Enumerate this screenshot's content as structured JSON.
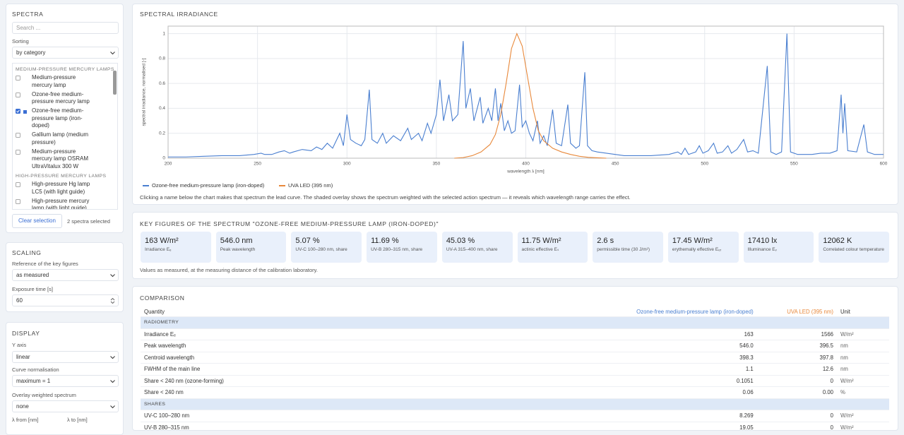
{
  "sidebar": {
    "spectra": {
      "title": "SPECTRA",
      "search_placeholder": "Search ...",
      "sorting_label": "Sorting",
      "sorting_value": "by category",
      "groups": [
        {
          "name": "MEDIUM-PRESSURE MERCURY LAMPS",
          "items": [
            {
              "label": "Medium-pressure mercury lamp",
              "checked": false
            },
            {
              "label": "Ozone-free medium-pressure mercury lamp",
              "checked": false
            },
            {
              "label": "Ozone-free medium-pressure lamp (iron-doped)",
              "checked": true,
              "color": "#3b6fd4"
            },
            {
              "label": "Gallium lamp (medium pressure)",
              "checked": false
            },
            {
              "label": "Medium-pressure mercury lamp OSRAM UltraVitalux 300 W",
              "checked": false
            }
          ]
        },
        {
          "name": "HIGH-PRESSURE MERCURY LAMPS",
          "items": [
            {
              "label": "High-pressure Hg lamp LC5 (with light guide)",
              "checked": false
            },
            {
              "label": "High-pressure mercury lamp (with light guide)",
              "checked": false
            }
          ]
        }
      ],
      "clear_button": "Clear selection",
      "selected_count": "2 spectra selected"
    },
    "scaling": {
      "title": "SCALING",
      "reference_label": "Reference of the key figures",
      "reference_value": "as measured",
      "exposure_label": "Exposure time [s]",
      "exposure_value": "60"
    },
    "display": {
      "title": "DISPLAY",
      "y_axis_label": "Y axis",
      "y_axis_value": "linear",
      "normalisation_label": "Curve normalisation",
      "normalisation_value": "maximum = 1",
      "overlay_label": "Overlay weighted spectrum",
      "overlay_value": "none",
      "from_label": "λ from [nm]",
      "to_label": "λ to [nm]"
    }
  },
  "chart_data": {
    "type": "line",
    "title": "SPECTRAL IRRADIANCE",
    "x_label": "wavelength λ [nm]",
    "y_label": "spectral irradiance, normalised [-]",
    "xlim": [
      200,
      600
    ],
    "xticks": [
      200,
      250,
      300,
      350,
      400,
      450,
      500,
      550,
      600
    ],
    "ylim": [
      0,
      1.06
    ],
    "yticks": [
      0,
      0.2,
      0.4,
      0.6,
      0.8,
      1
    ],
    "grid": true,
    "series": [
      {
        "name": "Ozone-free medium-pressure lamp (iron-doped)",
        "color": "#4a7fd0",
        "x": [
          200,
          210,
          220,
          230,
          240,
          248,
          252,
          254,
          258,
          262,
          265,
          268,
          270,
          275,
          280,
          283,
          286,
          289,
          292,
          296,
          298,
          300,
          302,
          305,
          308,
          310,
          312.5,
          314,
          317,
          320,
          322,
          326,
          330,
          334,
          336,
          340,
          342,
          345,
          347,
          350,
          352,
          354,
          357,
          359,
          362,
          365,
          366.5,
          369,
          371,
          374.5,
          376,
          379,
          381,
          383,
          384.5,
          386,
          388,
          390,
          392,
          394,
          396.5,
          398,
          400,
          402,
          404,
          406.5,
          408,
          410,
          412,
          415,
          417,
          420,
          423.5,
          425,
          428,
          430,
          433,
          434.5,
          437,
          440,
          445,
          450,
          455,
          460,
          470,
          480,
          485,
          487,
          489,
          491,
          495,
          497,
          499,
          502,
          505,
          507,
          510,
          513,
          515,
          518,
          521.8,
          524,
          527,
          530,
          535,
          537,
          540,
          543,
          546,
          548,
          552,
          560,
          565,
          570,
          574,
          576.3,
          577.3,
          578.3,
          580,
          585,
          589,
          591,
          595,
          600
        ],
        "values": [
          0.01,
          0.01,
          0.015,
          0.02,
          0.02,
          0.03,
          0.04,
          0.03,
          0.03,
          0.05,
          0.06,
          0.04,
          0.05,
          0.07,
          0.06,
          0.09,
          0.07,
          0.12,
          0.08,
          0.2,
          0.1,
          0.35,
          0.15,
          0.12,
          0.1,
          0.15,
          0.55,
          0.15,
          0.12,
          0.2,
          0.12,
          0.18,
          0.14,
          0.24,
          0.15,
          0.2,
          0.14,
          0.28,
          0.2,
          0.35,
          0.63,
          0.3,
          0.51,
          0.3,
          0.35,
          0.94,
          0.4,
          0.56,
          0.3,
          0.49,
          0.28,
          0.4,
          0.3,
          0.56,
          0.3,
          0.44,
          0.22,
          0.3,
          0.2,
          0.22,
          0.59,
          0.25,
          0.3,
          0.2,
          0.14,
          0.3,
          0.12,
          0.18,
          0.1,
          0.39,
          0.12,
          0.1,
          0.43,
          0.12,
          0.08,
          0.1,
          0.69,
          0.1,
          0.06,
          0.05,
          0.04,
          0.03,
          0.02,
          0.02,
          0.02,
          0.03,
          0.05,
          0.03,
          0.08,
          0.03,
          0.05,
          0.1,
          0.04,
          0.06,
          0.12,
          0.04,
          0.05,
          0.1,
          0.04,
          0.07,
          0.15,
          0.05,
          0.06,
          0.04,
          0.74,
          0.05,
          0.03,
          0.05,
          1,
          0.05,
          0.03,
          0.03,
          0.04,
          0.04,
          0.06,
          0.51,
          0.2,
          0.44,
          0.06,
          0.05,
          0.27,
          0.05,
          0.03,
          0.03
        ]
      },
      {
        "name": "UVA LED (395 nm)",
        "color": "#e8883a",
        "x": [
          360,
          365,
          370,
          375,
          380,
          383,
          386,
          389,
          392,
          395,
          398,
          401,
          404,
          407,
          410,
          415,
          420,
          425,
          430,
          435,
          440,
          445
        ],
        "values": [
          0,
          0.005,
          0.02,
          0.05,
          0.11,
          0.19,
          0.35,
          0.6,
          0.88,
          1,
          0.9,
          0.65,
          0.4,
          0.22,
          0.14,
          0.08,
          0.05,
          0.03,
          0.015,
          0.007,
          0.003,
          0
        ]
      }
    ],
    "caption": "Clicking a name below the chart makes that spectrum the lead curve. The shaded overlay shows the spectrum weighted with the selected action spectrum — it reveals which wavelength range carries the effect."
  },
  "key_figures": {
    "title": "KEY FIGURES OF THE SPECTRUM \"OZONE-FREE MEDIUM-PRESSURE LAMP (IRON-DOPED)\"",
    "cards": [
      {
        "value": "163 W/m²",
        "label": "Irradiance Eₑ"
      },
      {
        "value": "546.0 nm",
        "label": "Peak wavelength"
      },
      {
        "value": "5.07 %",
        "label": "UV-C 100–280 nm, share"
      },
      {
        "value": "11.69 %",
        "label": "UV-B 280–315 nm, share"
      },
      {
        "value": "45.03 %",
        "label": "UV-A 315–400 nm, share"
      },
      {
        "value": "11.75 W/m²",
        "label": "actinic effective Eₛ"
      },
      {
        "value": "2.6 s",
        "label": "permissible time (30 J/m²)"
      },
      {
        "value": "17.45 W/m²",
        "label": "erythemally effective Eₑᵣ"
      },
      {
        "value": "17410 lx",
        "label": "Illuminance Eᵥ"
      },
      {
        "value": "12062 K",
        "label": "Correlated colour temperature"
      }
    ],
    "note": "Values as measured, at the measuring distance of the calibration laboratory."
  },
  "comparison": {
    "title": "COMPARISON",
    "columns": [
      "Quantity",
      "Ozone-free medium-pressure lamp (iron-doped)",
      "UVA LED (395 nm)",
      "Unit"
    ],
    "sections": [
      {
        "name": "RADIOMETRY",
        "rows": [
          [
            "Irradiance Eₑ",
            "163",
            "1566",
            "W/m²"
          ],
          [
            "Peak wavelength",
            "546.0",
            "396.5",
            "nm"
          ],
          [
            "Centroid wavelength",
            "398.3",
            "397.8",
            "nm"
          ],
          [
            "FWHM of the main line",
            "1.1",
            "12.6",
            "nm"
          ],
          [
            "Share < 240 nm (ozone-forming)",
            "0.1051",
            "0",
            "W/m²"
          ],
          [
            "Share < 240 nm",
            "0.06",
            "0.00",
            "%"
          ]
        ]
      },
      {
        "name": "SHARES",
        "rows": [
          [
            "UV-C 100–280 nm",
            "8.269",
            "0",
            "W/m²"
          ],
          [
            "UV-B 280–315 nm",
            "19.05",
            "0",
            "W/m²"
          ]
        ]
      }
    ]
  }
}
